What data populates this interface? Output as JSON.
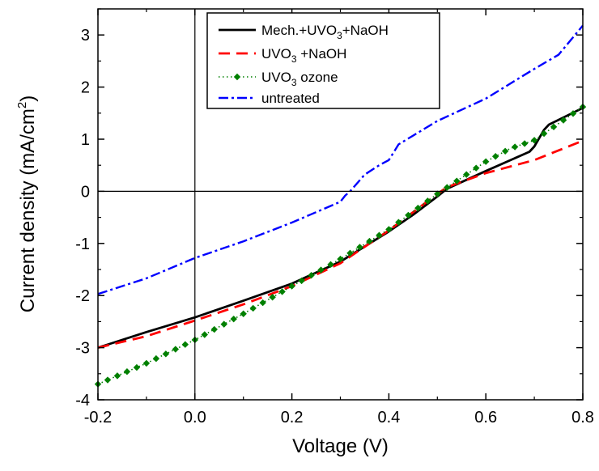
{
  "chart_data": {
    "type": "line",
    "title": "",
    "xlabel": "Voltage (V)",
    "ylabel": "Current density (mA/cm²)",
    "xlim": [
      -0.2,
      0.8
    ],
    "ylim": [
      -4,
      3.5
    ],
    "xticks": [
      -0.2,
      0.0,
      0.2,
      0.4,
      0.6,
      0.8
    ],
    "xtick_labels": [
      "-0.2",
      "0.0",
      "0.2",
      "0.4",
      "0.6",
      "0.8"
    ],
    "yticks": [
      -4,
      -3,
      -2,
      -1,
      0,
      1,
      2,
      3
    ],
    "ytick_labels": [
      "-4",
      "-3",
      "-2",
      "-1",
      "0",
      "1",
      "2",
      "3"
    ],
    "reference_lines": {
      "x": 0,
      "y": 0
    },
    "grid": false,
    "legend_position": "top-center",
    "series": [
      {
        "name": "Mech.+UVO3+NaOH",
        "legend_parts": {
          "a": "Mech.+UVO",
          "sub": "3",
          "b": "+NaOH"
        },
        "color": "#000000",
        "style": "solid",
        "x": [
          -0.2,
          -0.1,
          0.0,
          0.1,
          0.2,
          0.3,
          0.4,
          0.45,
          0.5,
          0.52,
          0.6,
          0.69,
          0.7,
          0.72,
          0.73,
          0.8
        ],
        "y": [
          -3.0,
          -2.7,
          -2.42,
          -2.1,
          -1.77,
          -1.35,
          -0.77,
          -0.45,
          -0.1,
          0.05,
          0.39,
          0.76,
          0.86,
          1.18,
          1.28,
          1.6
        ]
      },
      {
        "name": "UVO3 +NaOH",
        "legend_parts": {
          "a": "UVO",
          "sub": "3",
          "b": " +NaOH"
        },
        "color": "#ff0000",
        "style": "dashed",
        "x": [
          -0.2,
          -0.1,
          0.0,
          0.1,
          0.2,
          0.3,
          0.4,
          0.5,
          0.52,
          0.6,
          0.7,
          0.8
        ],
        "y": [
          -3.0,
          -2.78,
          -2.48,
          -2.17,
          -1.82,
          -1.38,
          -0.75,
          -0.05,
          0.08,
          0.35,
          0.6,
          0.97
        ]
      },
      {
        "name": "UVO3 ozone",
        "legend_parts": {
          "a": "UVO",
          "sub": "3",
          "b": " ozone"
        },
        "color": "#008000",
        "style": "dotted-diamond",
        "x": [
          -0.2,
          -0.1,
          0.0,
          0.1,
          0.2,
          0.3,
          0.4,
          0.5,
          0.6,
          0.65,
          0.7,
          0.8
        ],
        "y": [
          -3.7,
          -3.3,
          -2.85,
          -2.35,
          -1.82,
          -1.3,
          -0.73,
          -0.05,
          0.57,
          0.82,
          0.98,
          1.62
        ]
      },
      {
        "name": "untreated",
        "legend_parts": {
          "a": "untreated",
          "sub": "",
          "b": ""
        },
        "color": "#0000ff",
        "style": "dash-dot",
        "x": [
          -0.2,
          -0.1,
          0.0,
          0.1,
          0.2,
          0.3,
          0.31,
          0.32,
          0.35,
          0.38,
          0.4,
          0.42,
          0.5,
          0.6,
          0.7,
          0.75,
          0.8
        ],
        "y": [
          -1.97,
          -1.67,
          -1.28,
          -0.96,
          -0.6,
          -0.2,
          -0.08,
          0.0,
          0.32,
          0.5,
          0.6,
          0.9,
          1.35,
          1.78,
          2.35,
          2.62,
          3.18
        ]
      }
    ]
  }
}
